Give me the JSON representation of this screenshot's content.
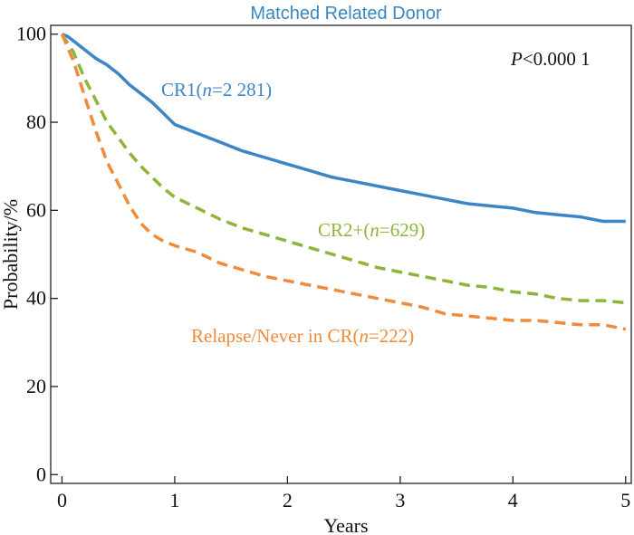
{
  "chart_data": {
    "type": "line",
    "title": "Matched Related Donor",
    "xlabel": "Years",
    "ylabel": "Probability/%",
    "xlim": [
      -0.1,
      5.05
    ],
    "ylim": [
      -2,
      102
    ],
    "x_ticks": [
      0,
      1,
      2,
      3,
      4,
      5
    ],
    "y_ticks": [
      0,
      20,
      40,
      60,
      80,
      100
    ],
    "annotation": {
      "italic": "P",
      "text": "<0.000 1"
    },
    "colors": {
      "title": "#3b86c0",
      "axis": "#111111"
    },
    "series": [
      {
        "name": "CR1(n=2 281)",
        "label_parts": [
          "CR1(",
          "n",
          "=2 281)"
        ],
        "color": "#3d85c6",
        "style": "solid",
        "x": [
          0,
          0.05,
          0.1,
          0.2,
          0.3,
          0.4,
          0.5,
          0.6,
          0.7,
          0.8,
          0.9,
          1.0,
          1.2,
          1.4,
          1.6,
          1.8,
          2.0,
          2.2,
          2.4,
          2.6,
          2.8,
          3.0,
          3.2,
          3.4,
          3.6,
          3.8,
          4.0,
          4.2,
          4.4,
          4.6,
          4.8,
          5.0
        ],
        "y": [
          100,
          99.5,
          98.5,
          96.5,
          94.5,
          93,
          91,
          88.5,
          86.5,
          84.5,
          82,
          79.5,
          77.5,
          75.5,
          73.5,
          72,
          70.5,
          69,
          67.5,
          66.5,
          65.5,
          64.5,
          63.5,
          62.5,
          61.5,
          61,
          60.5,
          59.5,
          59,
          58.5,
          57.5,
          57.5
        ]
      },
      {
        "name": "CR2+(n=629)",
        "label_parts": [
          "CR2+(",
          "n",
          "=629)"
        ],
        "color": "#8db53a",
        "style": "dashed",
        "x": [
          0,
          0.1,
          0.2,
          0.3,
          0.4,
          0.5,
          0.6,
          0.7,
          0.8,
          0.9,
          1.0,
          1.2,
          1.4,
          1.6,
          1.8,
          2.0,
          2.2,
          2.4,
          2.6,
          2.8,
          3.0,
          3.2,
          3.4,
          3.6,
          3.8,
          4.0,
          4.2,
          4.4,
          4.6,
          4.8,
          5.0
        ],
        "y": [
          100,
          96,
          90,
          85,
          80,
          76.5,
          73,
          70,
          67.5,
          65,
          63,
          60.5,
          58,
          56,
          54.5,
          53,
          51.5,
          50,
          48.5,
          47,
          46,
          45,
          44,
          43,
          42.5,
          41.5,
          41,
          40,
          39.5,
          39.5,
          39
        ]
      },
      {
        "name": "Relapse/Never in CR(n=222)",
        "label_parts": [
          "Relapse/Never in CR(",
          "n",
          "=222)"
        ],
        "color": "#f08b3b",
        "style": "dashed",
        "x": [
          0,
          0.1,
          0.2,
          0.3,
          0.4,
          0.5,
          0.6,
          0.7,
          0.8,
          0.9,
          1.0,
          1.2,
          1.4,
          1.6,
          1.8,
          2.0,
          2.2,
          2.4,
          2.6,
          2.8,
          3.0,
          3.2,
          3.4,
          3.6,
          3.8,
          4.0,
          4.2,
          4.4,
          4.6,
          4.8,
          5.0
        ],
        "y": [
          100,
          94,
          86,
          78,
          71,
          66,
          61,
          57,
          54.5,
          53,
          52,
          50.5,
          48,
          46.5,
          45,
          44,
          43,
          42,
          41,
          40,
          39,
          38,
          36.5,
          36,
          35.5,
          35,
          35,
          34.5,
          34,
          34,
          33
        ]
      }
    ]
  }
}
